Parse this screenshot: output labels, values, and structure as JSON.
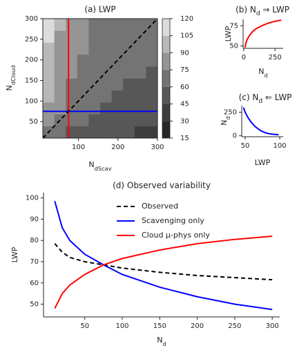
{
  "chart_data": [
    {
      "type": "contour",
      "title": "(a) LWP",
      "xlabel": [
        "N",
        "dScav"
      ],
      "ylabel": [
        "N",
        "dCloud"
      ],
      "x": [
        24.5,
        53.5,
        82.5,
        111.5,
        140.5,
        169.5,
        198.5,
        227.5,
        256.5,
        285.5
      ],
      "y": [
        24.5,
        53.5,
        82.5,
        111.5,
        140.5,
        169.5,
        198.5,
        227.5,
        256.5,
        285.5
      ],
      "z": [
        [
          73,
          62,
          56,
          53,
          50,
          48,
          47,
          45,
          44,
          43
        ],
        [
          83,
          70,
          64,
          60,
          57,
          54,
          53,
          51,
          50,
          49
        ],
        [
          88,
          75,
          68,
          64,
          61,
          58,
          56,
          55,
          53,
          52
        ],
        [
          93,
          78,
          71,
          67,
          64,
          61,
          59,
          57,
          56,
          55
        ],
        [
          96,
          81,
          74,
          69,
          66,
          63,
          61,
          59,
          58,
          57
        ],
        [
          99,
          84,
          76,
          72,
          68,
          65,
          63,
          61,
          60,
          58
        ],
        [
          102,
          86,
          78,
          73,
          70,
          67,
          65,
          63,
          61,
          60
        ],
        [
          104,
          88,
          80,
          75,
          71,
          68,
          66,
          64,
          63,
          61
        ],
        [
          106,
          89,
          81,
          76,
          73,
          70,
          67,
          65,
          64,
          62
        ],
        [
          108,
          91,
          83,
          78,
          74,
          71,
          68,
          67,
          65,
          63
        ]
      ],
      "levels": [
        15,
        30,
        45,
        60,
        75,
        90,
        105,
        120
      ],
      "colors": [
        "#262626",
        "#3d3d3d",
        "#575757",
        "#747474",
        "#959595",
        "#b8b8b8",
        "#dcdcdc"
      ],
      "xlim": [
        10,
        300
      ],
      "ylim": [
        10,
        300
      ],
      "xticks": [
        100,
        200,
        300
      ],
      "yticks": [
        50,
        100,
        150,
        200,
        250,
        300
      ],
      "lines": [
        {
          "x": [
            75,
            75
          ],
          "y": [
            10,
            300
          ],
          "color": "#ff0000"
        },
        {
          "x": [
            10,
            300
          ],
          "y": [
            75,
            75
          ],
          "color": "#0000ff"
        },
        {
          "x": [
            10,
            300
          ],
          "y": [
            10,
            300
          ],
          "color": "#000000",
          "dash": true
        }
      ]
    },
    {
      "type": "line",
      "title": [
        "(b) N",
        "d",
        " ⇒ LWP"
      ],
      "xlabel": [
        "N",
        "d"
      ],
      "ylabel": "LWP",
      "x": [
        10,
        20,
        30,
        50,
        75,
        100,
        150,
        200,
        250,
        300
      ],
      "series": [
        {
          "color": "#ff0000",
          "values": [
            48,
            55,
            59,
            64,
            68.5,
            71.5,
            75.5,
            78.5,
            80.5,
            82
          ]
        }
      ],
      "xlim": [
        -5,
        315
      ],
      "ylim": [
        47,
        83
      ],
      "xticks": [
        0,
        250
      ],
      "yticks": [
        50,
        75
      ]
    },
    {
      "type": "line",
      "title": [
        "(c) N",
        "d",
        " ⇐ LWP"
      ],
      "xlabel": "LWP",
      "ylabel": [
        "N",
        "d"
      ],
      "x": [
        98.5,
        86,
        80,
        73.5,
        68.5,
        64,
        58,
        53.5,
        50,
        47.5
      ],
      "series": [
        {
          "color": "#0000ff",
          "values": [
            10,
            20,
            30,
            50,
            75,
            100,
            150,
            200,
            250,
            300
          ]
        }
      ],
      "xlim": [
        45,
        105
      ],
      "ylim": [
        -10,
        320
      ],
      "xticks": [
        50,
        100
      ],
      "yticks": [
        0,
        250
      ]
    },
    {
      "type": "line",
      "title": "(d) Observed variability",
      "xlabel": [
        "N",
        "d"
      ],
      "ylabel": "LWP",
      "x": [
        10,
        20,
        30,
        50,
        75,
        100,
        150,
        200,
        250,
        300
      ],
      "series": [
        {
          "name": "Observed",
          "color": "#000000",
          "dash": true,
          "values": [
            78.5,
            74.5,
            72,
            70,
            68.5,
            67,
            65,
            63.5,
            62.5,
            61.5
          ]
        },
        {
          "name": "Scavenging only",
          "color": "#0000ff",
          "values": [
            98.5,
            86,
            80,
            73.5,
            68.5,
            64,
            58,
            53.5,
            50,
            47.5
          ]
        },
        {
          "name": "Cloud μ-phys only",
          "color": "#ff0000",
          "values": [
            48,
            55,
            59,
            64,
            68.5,
            71.5,
            75.5,
            78.5,
            80.5,
            82
          ]
        }
      ],
      "xlim": [
        -5,
        310
      ],
      "ylim": [
        44,
        102.5
      ],
      "xticks": [
        50,
        100,
        150,
        200,
        250,
        300
      ],
      "yticks": [
        50,
        60,
        70,
        80,
        90,
        100
      ],
      "legend": "upper center"
    }
  ]
}
